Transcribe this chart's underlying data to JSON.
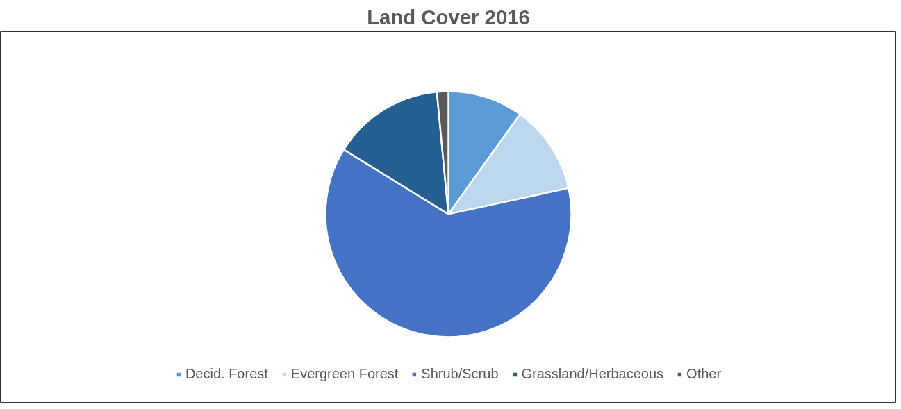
{
  "chart_data": {
    "type": "pie",
    "title": "Land Cover 2016",
    "categories": [
      "Decid. Forest",
      "Evergreen Forest",
      "Shrub/Scrub",
      "Grassland/Herbaceous",
      "Other"
    ],
    "values": [
      9.9,
      11.7,
      62.2,
      14.7,
      1.5
    ],
    "colors": [
      "#5b9bd5",
      "#bdd7ee",
      "#4472c4",
      "#255e91",
      "#595959"
    ],
    "legend": "bottom"
  }
}
